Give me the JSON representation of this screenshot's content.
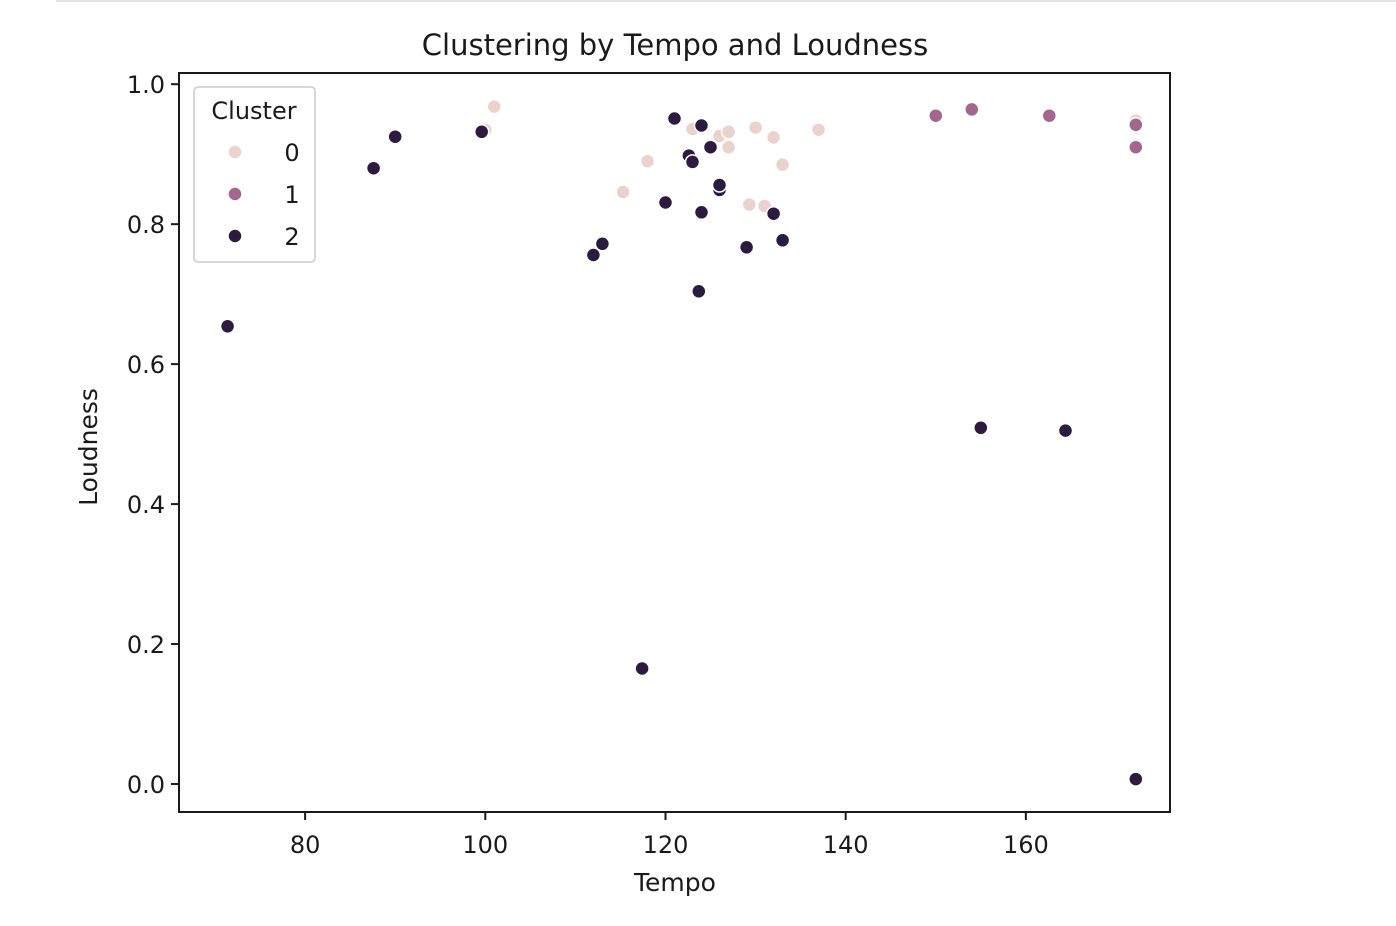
{
  "chart_data": {
    "type": "scatter",
    "title": "Clustering by Tempo and Loudness",
    "xlabel": "Tempo",
    "ylabel": "Loudness",
    "xlim": [
      66,
      176
    ],
    "ylim": [
      -0.04,
      1.016
    ],
    "xticks": [
      80,
      100,
      120,
      140,
      160
    ],
    "xtick_labels": [
      "80",
      "100",
      "120",
      "140",
      "160"
    ],
    "yticks": [
      0.0,
      0.2,
      0.4,
      0.6,
      0.8,
      1.0
    ],
    "ytick_labels": [
      "0.0",
      "0.2",
      "0.4",
      "0.6",
      "0.8",
      "1.0"
    ],
    "grid": false,
    "legend": {
      "title": "Cluster",
      "position": "top-left",
      "entries": [
        "0",
        "1",
        "2"
      ]
    },
    "colors": {
      "0": "#ead3cc",
      "1": "#a3678e",
      "2": "#2b1b3f"
    },
    "series": [
      {
        "name": "0",
        "points": [
          [
            100.0,
            0.935
          ],
          [
            101.0,
            0.968
          ],
          [
            115.3,
            0.846
          ],
          [
            118.0,
            0.89
          ],
          [
            123.0,
            0.936
          ],
          [
            126.0,
            0.926
          ],
          [
            127.0,
            0.932
          ],
          [
            127.0,
            0.91
          ],
          [
            129.3,
            0.828
          ],
          [
            130.0,
            0.938
          ],
          [
            131.0,
            0.826
          ],
          [
            132.0,
            0.924
          ],
          [
            133.0,
            0.885
          ],
          [
            137.0,
            0.935
          ],
          [
            172.2,
            0.948
          ]
        ]
      },
      {
        "name": "1",
        "points": [
          [
            150.0,
            0.955
          ],
          [
            154.0,
            0.964
          ],
          [
            162.6,
            0.955
          ],
          [
            172.2,
            0.942
          ],
          [
            172.2,
            0.91
          ]
        ]
      },
      {
        "name": "2",
        "points": [
          [
            71.4,
            0.654
          ],
          [
            87.6,
            0.88
          ],
          [
            90.0,
            0.925
          ],
          [
            99.6,
            0.932
          ],
          [
            112.0,
            0.756
          ],
          [
            113.0,
            0.772
          ],
          [
            117.4,
            0.165
          ],
          [
            120.0,
            0.831
          ],
          [
            121.0,
            0.951
          ],
          [
            122.6,
            0.898
          ],
          [
            123.0,
            0.889
          ],
          [
            123.7,
            0.704
          ],
          [
            124.0,
            0.817
          ],
          [
            124.0,
            0.941
          ],
          [
            125.0,
            0.91
          ],
          [
            126.0,
            0.849
          ],
          [
            126.0,
            0.856
          ],
          [
            129.0,
            0.767
          ],
          [
            132.0,
            0.815
          ],
          [
            133.0,
            0.777
          ],
          [
            155.0,
            0.509
          ],
          [
            164.4,
            0.505
          ],
          [
            172.2,
            0.007
          ]
        ]
      }
    ]
  }
}
